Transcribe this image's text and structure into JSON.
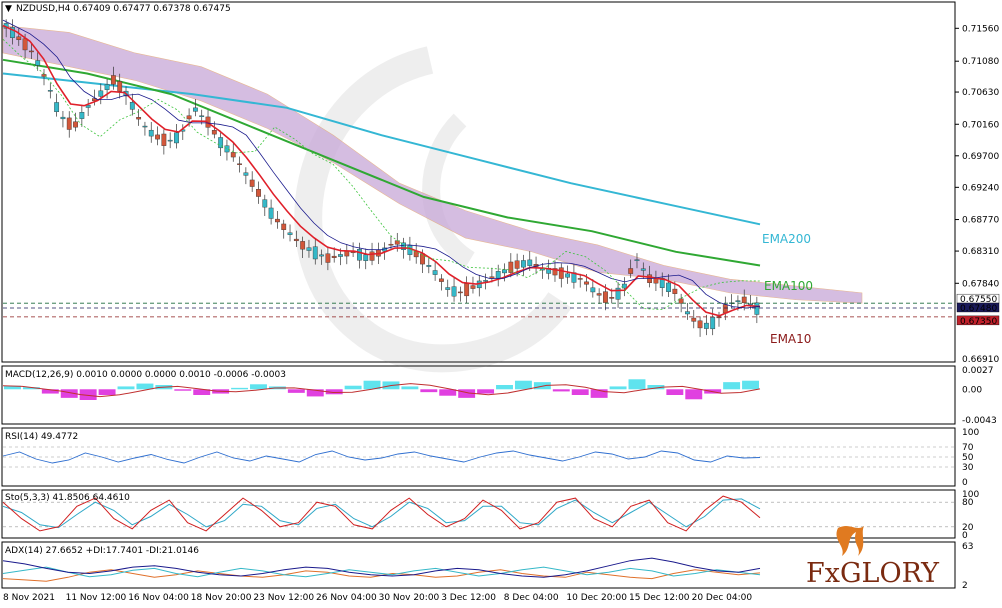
{
  "colors": {
    "bull": "#35b8c8",
    "bear": "#d2573a",
    "ema10": "#e0202a",
    "ema100": "#2fa833",
    "ema200": "#34b7d4",
    "cloud": "#c8a8d8",
    "kijun": "#1a1a8c",
    "chikou": "#3cc43c",
    "macd_pos": "#5fe3ee",
    "macd_neg": "#e040e0",
    "rsi": "#2f6fd0",
    "sto_main": "#d02020",
    "sto_signal": "#2fa8c8",
    "adx": "#1a1a8c",
    "plus_di": "#35b8c8",
    "minus_di": "#e0702a",
    "logo": "#7a2a10"
  },
  "chart_data": [
    {
      "panel": "main",
      "type": "candlestick",
      "symbol_header": "NZDUSD,H4 0.67409 0.67477 0.67378 0.67475",
      "ylim": [
        0.6675,
        0.719
      ],
      "y_ticks": [
        "0.71560",
        "0.71080",
        "0.70630",
        "0.70160",
        "0.69700",
        "0.69240",
        "0.68770",
        "0.68310",
        "0.67840"
      ],
      "price_tags": [
        "0.67550",
        "0.67480",
        "0.67350"
      ],
      "last_tag_values": [
        0.6755,
        0.6748,
        0.6735
      ],
      "bottom_tick": "0.66910",
      "x_labels": [
        "8 Nov 2021",
        "11 Nov 12:00",
        "16 Nov 04:00",
        "18 Nov 20:00",
        "23 Nov 12:00",
        "26 Nov 04:00",
        "30 Nov 20:00",
        "3 Dec 12:00",
        "8 Dec 04:00",
        "10 Dec 20:00",
        "15 Dec 12:00",
        "20 Dec 04:00"
      ],
      "close_path": [
        0.716,
        0.714,
        0.712,
        0.708,
        0.703,
        0.701,
        0.704,
        0.706,
        0.708,
        0.706,
        0.702,
        0.7,
        0.699,
        0.7,
        0.704,
        0.702,
        0.699,
        0.697,
        0.694,
        0.691,
        0.688,
        0.686,
        0.684,
        0.683,
        0.682,
        0.6825,
        0.683,
        0.682,
        0.683,
        0.6845,
        0.6835,
        0.682,
        0.68,
        0.6775,
        0.677,
        0.678,
        0.679,
        0.68,
        0.681,
        0.6815,
        0.6805,
        0.68,
        0.6795,
        0.679,
        0.677,
        0.676,
        0.6775,
        0.682,
        0.679,
        0.6785,
        0.677,
        0.6735,
        0.672,
        0.673,
        0.6755,
        0.676,
        0.6748
      ],
      "ema_labels": {
        "ema200": "EMA200",
        "ema100": "EMA100",
        "ema10": "EMA10"
      },
      "ema200_path": [
        0.709,
        0.7075,
        0.706,
        0.704,
        0.7,
        0.6965,
        0.693,
        0.69,
        0.687
      ],
      "ema100_path": [
        0.711,
        0.709,
        0.706,
        0.701,
        0.696,
        0.691,
        0.688,
        0.686,
        0.683,
        0.681
      ],
      "cloud_top": [
        0.716,
        0.715,
        0.712,
        0.71,
        0.706,
        0.7,
        0.693,
        0.689,
        0.686,
        0.684,
        0.681,
        0.679,
        0.678,
        0.677
      ],
      "cloud_bottom": [
        0.712,
        0.71,
        0.708,
        0.705,
        0.701,
        0.696,
        0.69,
        0.685,
        0.683,
        0.68,
        0.679,
        0.677,
        0.676,
        0.6755
      ]
    },
    {
      "panel": "macd",
      "type": "histogram",
      "label": "MACD(12,26,9) 0.0010 0.0000 0.0000 0.0010 -0.0006 -0.0003",
      "y_ticks": [
        "0.0027",
        "0.00",
        "-0.0043"
      ],
      "ylim": [
        -0.0043,
        0.0027
      ],
      "values": [
        0.0005,
        0.0003,
        -0.0006,
        -0.0012,
        -0.0015,
        -0.0008,
        0.0004,
        0.0008,
        0.0006,
        -0.0002,
        -0.0008,
        -0.0006,
        0.0002,
        0.0007,
        0.0004,
        -0.0005,
        -0.001,
        -0.0007,
        0.0005,
        0.0012,
        0.0011,
        0.0004,
        -0.0004,
        -0.0009,
        -0.0012,
        -0.0006,
        0.0006,
        0.0012,
        0.001,
        -0.0003,
        -0.0008,
        -0.0012,
        0.0004,
        0.0014,
        0.0006,
        -0.0008,
        -0.0014,
        -0.0006,
        0.001,
        0.0012
      ]
    },
    {
      "panel": "rsi",
      "type": "line",
      "label": "RSI(14) 49.4772",
      "y_ticks": [
        "100",
        "70",
        "50",
        "30",
        "0"
      ],
      "ylim": [
        0,
        100
      ],
      "values": [
        52,
        60,
        46,
        38,
        44,
        58,
        50,
        40,
        48,
        55,
        45,
        38,
        50,
        60,
        48,
        42,
        52,
        46,
        40,
        55,
        62,
        50,
        44,
        48,
        56,
        60,
        52,
        46,
        40,
        50,
        58,
        62,
        54,
        48,
        42,
        50,
        60,
        56,
        46,
        50,
        62,
        58,
        44,
        40,
        52,
        48,
        49
      ]
    },
    {
      "panel": "sto",
      "type": "line",
      "label": "Sto(5,3,3) 41.8506 64.4610",
      "y_ticks": [
        "100",
        "80",
        "20",
        "0"
      ],
      "ylim": [
        0,
        100
      ],
      "main": [
        80,
        40,
        10,
        20,
        70,
        90,
        40,
        15,
        60,
        85,
        30,
        10,
        50,
        90,
        60,
        20,
        30,
        80,
        70,
        25,
        15,
        60,
        90,
        50,
        20,
        40,
        85,
        60,
        15,
        30,
        80,
        90,
        40,
        20,
        70,
        85,
        30,
        10,
        60,
        95,
        80,
        42
      ],
      "signal": [
        70,
        55,
        25,
        18,
        50,
        80,
        60,
        25,
        45,
        75,
        50,
        20,
        35,
        75,
        70,
        35,
        25,
        65,
        75,
        40,
        20,
        45,
        80,
        65,
        30,
        35,
        70,
        70,
        30,
        25,
        65,
        85,
        55,
        30,
        55,
        80,
        50,
        20,
        45,
        85,
        88,
        64
      ]
    },
    {
      "panel": "adx",
      "type": "line",
      "label": "ADX(14) 27.6652 +DI:17.7401 -DI:21.0146",
      "y_ticks": [
        "63",
        "2"
      ],
      "ylim": [
        2,
        63
      ],
      "adx": [
        40,
        35,
        28,
        22,
        20,
        24,
        30,
        32,
        28,
        22,
        18,
        16,
        20,
        26,
        30,
        28,
        22,
        18,
        16,
        18,
        24,
        28,
        26,
        20,
        16,
        14,
        18,
        24,
        32,
        40,
        44,
        38,
        30,
        24,
        22,
        28
      ],
      "plus_di": [
        20,
        25,
        30,
        22,
        15,
        18,
        25,
        28,
        20,
        15,
        22,
        28,
        24,
        18,
        15,
        20,
        26,
        22,
        18,
        24,
        28,
        22,
        16,
        20,
        26,
        30,
        24,
        18,
        22,
        28,
        24,
        16,
        20,
        26,
        22,
        18
      ],
      "minus_di": [
        12,
        10,
        8,
        14,
        22,
        26,
        20,
        14,
        18,
        24,
        20,
        16,
        14,
        18,
        24,
        22,
        16,
        14,
        20,
        18,
        14,
        16,
        22,
        26,
        20,
        16,
        14,
        22,
        18,
        14,
        12,
        20,
        26,
        22,
        18,
        21
      ]
    }
  ],
  "brand": "FXGLORY"
}
